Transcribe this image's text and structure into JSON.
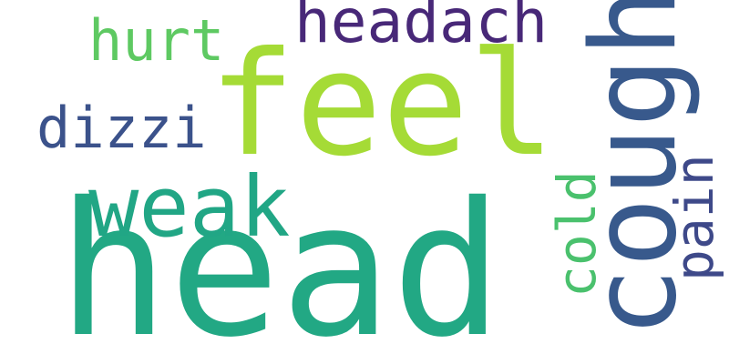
{
  "word_cloud": {
    "background_color": "#ffffff",
    "words": [
      {
        "id": "head",
        "text": "head",
        "color": "#22a884",
        "orientation": "horizontal"
      },
      {
        "id": "feel",
        "text": "feel",
        "color": "#a5db36",
        "orientation": "horizontal"
      },
      {
        "id": "cough",
        "text": "cough",
        "color": "#38598c",
        "orientation": "vertical"
      },
      {
        "id": "weak",
        "text": "weak",
        "color": "#21a685",
        "orientation": "horizontal"
      },
      {
        "id": "headach",
        "text": "headach",
        "color": "#482878",
        "orientation": "horizontal"
      },
      {
        "id": "hurt",
        "text": "hurt",
        "color": "#5ec962",
        "orientation": "horizontal"
      },
      {
        "id": "dizzi",
        "text": "dizzi",
        "color": "#3b528b",
        "orientation": "horizontal"
      },
      {
        "id": "cold",
        "text": "cold",
        "color": "#4ac16d",
        "orientation": "vertical"
      },
      {
        "id": "pain",
        "text": "pain",
        "color": "#3e4989",
        "orientation": "vertical"
      }
    ]
  }
}
